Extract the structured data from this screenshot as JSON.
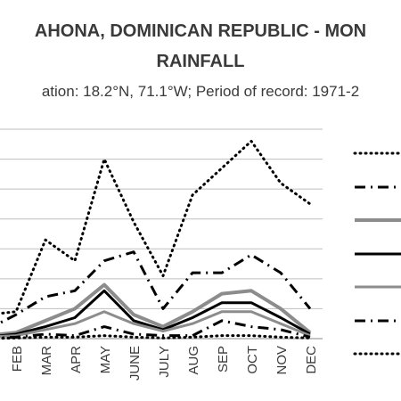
{
  "chart_data": {
    "type": "line",
    "title": "AHONA, DOMINICAN REPUBLIC - MON",
    "title_line2": "RAINFALL",
    "subtitle": "ation: 18.2°N, 71.1°W; Period of record: 1971-2",
    "categories": [
      "FEB",
      "MAR",
      "APR",
      "MAY",
      "JUNE",
      "JULY",
      "AUG",
      "SEP",
      "OCT",
      "NOV",
      "DEC"
    ],
    "x_prev_value_jan": true,
    "ylim": [
      0,
      7
    ],
    "grid": true,
    "legend_position": "right",
    "series": [
      {
        "style": "dotted-black",
        "color": "#000000",
        "values": [
          0.9,
          3.3,
          2.6,
          6.0,
          3.9,
          2.1,
          4.8,
          5.7,
          6.6,
          5.2,
          4.5
        ],
        "jan": 0.8
      },
      {
        "style": "dashdot-black",
        "color": "#000000",
        "values": [
          0.8,
          1.4,
          1.6,
          2.6,
          2.9,
          1.0,
          2.2,
          2.2,
          2.8,
          2.2,
          1.0
        ],
        "jan": 0.3
      },
      {
        "style": "solid-gray-thick",
        "color": "#8c8c8c",
        "values": [
          0.2,
          0.6,
          1.0,
          1.8,
          0.8,
          0.4,
          0.9,
          1.5,
          1.6,
          1.0,
          0.2
        ],
        "jan": 0.1
      },
      {
        "style": "solid-black-thick",
        "color": "#000000",
        "values": [
          0.15,
          0.4,
          0.7,
          1.6,
          0.6,
          0.3,
          0.7,
          1.2,
          1.2,
          0.7,
          0.15
        ],
        "jan": 0.05
      },
      {
        "style": "solid-gray",
        "color": "#8c8c8c",
        "values": [
          0.1,
          0.3,
          0.5,
          0.9,
          0.5,
          0.25,
          0.5,
          0.9,
          0.9,
          0.5,
          0.1
        ],
        "jan": 0.05
      },
      {
        "style": "dashdot-black-2",
        "color": "#000000",
        "values": [
          0.05,
          0.15,
          0.1,
          0.4,
          0.15,
          0.1,
          0.1,
          0.6,
          0.4,
          0.3,
          0.05
        ],
        "jan": 0.0
      },
      {
        "style": "dotted-black-2",
        "color": "#000000",
        "values": [
          0.02,
          0.05,
          0.05,
          0.1,
          0.05,
          0.02,
          0.05,
          0.1,
          0.1,
          0.05,
          0.02
        ],
        "jan": 0.0
      }
    ]
  }
}
